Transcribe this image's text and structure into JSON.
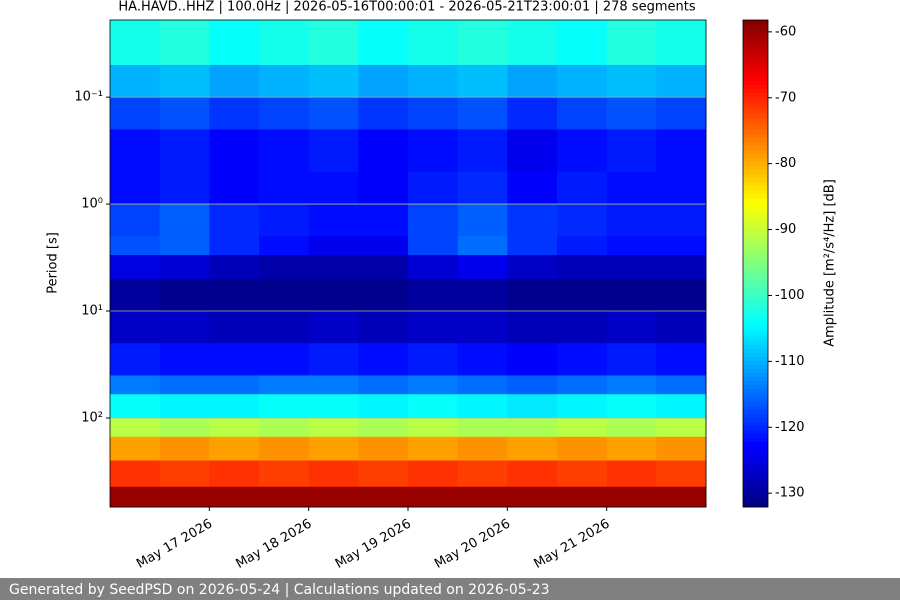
{
  "chart_data": {
    "type": "spectrogram",
    "title": "HA.HAVD..HHZ | 100.0Hz | 2026-05-16T00:00:01 - 2026-05-21T23:00:01 | 278 segments",
    "ylabel": "Period [s]",
    "log_y": true,
    "invert_y": true,
    "grid": true,
    "xlim": [
      "2026-05-16",
      "2026-05-22"
    ],
    "xticks": [
      {
        "value": "2026-05-17",
        "label": "May 17 2026"
      },
      {
        "value": "2026-05-18",
        "label": "May 18 2026"
      },
      {
        "value": "2026-05-19",
        "label": "May 19 2026"
      },
      {
        "value": "2026-05-20",
        "label": "May 20 2026"
      },
      {
        "value": "2026-05-21",
        "label": "May 21 2026"
      }
    ],
    "ylim": [
      0.019,
      680
    ],
    "yticks": [
      {
        "value": 0.1,
        "label": "10⁻¹"
      },
      {
        "value": 1,
        "label": "10⁰"
      },
      {
        "value": 10,
        "label": "10¹"
      },
      {
        "value": 100,
        "label": "10²"
      }
    ],
    "x_bins": [
      "2026-05-16T00:00",
      "2026-05-16T12:00",
      "2026-05-17T00:00",
      "2026-05-17T12:00",
      "2026-05-18T00:00",
      "2026-05-18T12:00",
      "2026-05-19T00:00",
      "2026-05-19T12:00",
      "2026-05-20T00:00",
      "2026-05-20T12:00",
      "2026-05-21T00:00",
      "2026-05-21T12:00",
      "2026-05-22T00:00"
    ],
    "y_bins": [
      0.019,
      0.05,
      0.1,
      0.2,
      0.5,
      1,
      2,
      3,
      5,
      10,
      20,
      40,
      60,
      100,
      150,
      250,
      440,
      680
    ],
    "values": [
      [
        -103,
        -102,
        -104,
        -103,
        -102,
        -104,
        -103,
        -102,
        -103,
        -104,
        -102,
        -103
      ],
      [
        -110,
        -109,
        -111,
        -110,
        -109,
        -111,
        -110,
        -109,
        -111,
        -110,
        -109,
        -110
      ],
      [
        -118,
        -117,
        -119,
        -118,
        -117,
        -119,
        -118,
        -117,
        -120,
        -118,
        -117,
        -118
      ],
      [
        -122,
        -121,
        -123,
        -122,
        -121,
        -123,
        -122,
        -121,
        -124,
        -122,
        -121,
        -122
      ],
      [
        -122,
        -121,
        -123,
        -122,
        -122,
        -123,
        -121,
        -120,
        -123,
        -121,
        -122,
        -122
      ],
      [
        -118,
        -116,
        -120,
        -121,
        -122,
        -122,
        -118,
        -116,
        -119,
        -120,
        -121,
        -121
      ],
      [
        -117,
        -116,
        -120,
        -122,
        -124,
        -124,
        -118,
        -115,
        -119,
        -121,
        -122,
        -122
      ],
      [
        -125,
        -126,
        -128,
        -129,
        -129,
        -129,
        -126,
        -124,
        -127,
        -128,
        -128,
        -128
      ],
      [
        -130,
        -131,
        -131,
        -131,
        -131,
        -131,
        -130,
        -130,
        -131,
        -131,
        -131,
        -131
      ],
      [
        -127,
        -127,
        -128,
        -128,
        -127,
        -128,
        -127,
        -127,
        -128,
        -128,
        -127,
        -128
      ],
      [
        -121,
        -122,
        -122,
        -122,
        -121,
        -122,
        -121,
        -122,
        -123,
        -122,
        -121,
        -122
      ],
      [
        -114,
        -115,
        -115,
        -114,
        -114,
        -115,
        -114,
        -115,
        -116,
        -115,
        -114,
        -115
      ],
      [
        -104,
        -105,
        -105,
        -104,
        -104,
        -105,
        -104,
        -105,
        -106,
        -105,
        -104,
        -105
      ],
      [
        -91,
        -92,
        -91,
        -92,
        -91,
        -92,
        -91,
        -92,
        -92,
        -91,
        -92,
        -91
      ],
      [
        -79,
        -78,
        -79,
        -78,
        -79,
        -78,
        -79,
        -78,
        -79,
        -78,
        -79,
        -78
      ],
      [
        -71,
        -72,
        -71,
        -72,
        -71,
        -72,
        -71,
        -72,
        -71,
        -72,
        -71,
        -72
      ],
      [
        -60,
        -60,
        -60,
        -60,
        -60,
        -60,
        -60,
        -60,
        -60,
        -60,
        -60,
        -60
      ]
    ],
    "colormap": "jet",
    "colorbar": {
      "label": "Amplitude [m²/s⁴/Hz] [dB]",
      "lim": [
        -132.1,
        -58.2
      ],
      "ticks": [
        -60,
        -70,
        -80,
        -90,
        -100,
        -110,
        -120,
        -130
      ]
    }
  },
  "footer": "Generated by SeedPSD on 2026-05-24 | Calculations updated on 2026-05-23"
}
